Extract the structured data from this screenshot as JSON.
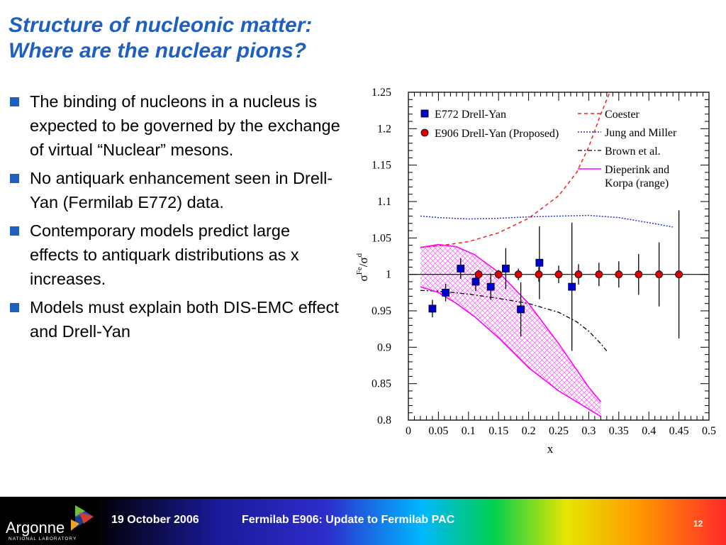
{
  "slide": {
    "title_line1": "Structure of nucleonic matter:",
    "title_line2": "Where are the nuclear pions?",
    "bullets": [
      "The binding of nucleons in a nucleus is expected to be governed by the exchange of virtual “Nuclear” mesons.",
      "No antiquark enhancement seen in Drell-Yan (Fermilab E772) data.",
      "Contemporary models predict large effects to antiquark distributions as x increases.",
      "Models must explain both DIS-EMC effect and Drell-Yan"
    ]
  },
  "footer": {
    "logo_word": "Argonne",
    "logo_sub": "NATIONAL LABORATORY",
    "date": "19 October 2006",
    "title": "Fermilab E906:  Update to Fermilab PAC",
    "page": "12"
  },
  "colors": {
    "title": "#1f5fbf",
    "bullet": "#1f5fbf",
    "e772": "#0000cc",
    "e906": "#dd0000",
    "coester": "#ee2222",
    "jung": "#2233cc",
    "dieperink": "#ff00ff"
  },
  "chart_data": {
    "type": "scatter",
    "xlabel": "x",
    "ylabel": "σFe/σd",
    "xlim": [
      0,
      0.5
    ],
    "ylim": [
      0.8,
      1.25
    ],
    "xticks": [
      "0",
      "0.05",
      "0.1",
      "0.15",
      "0.2",
      "0.25",
      "0.3",
      "0.35",
      "0.4",
      "0.45",
      "0.5"
    ],
    "yticks": [
      "0.8",
      "0.85",
      "0.9",
      "0.95",
      "1",
      "1.05",
      "1.1",
      "1.15",
      "1.2",
      "1.25"
    ],
    "reference_line": 1.0,
    "series": [
      {
        "name": "E772 Drell-Yan",
        "marker": "square",
        "points": [
          {
            "x": 0.04,
            "y": 0.953,
            "err": 0.012
          },
          {
            "x": 0.062,
            "y": 0.975,
            "err": 0.012
          },
          {
            "x": 0.087,
            "y": 1.008,
            "err": 0.014
          },
          {
            "x": 0.112,
            "y": 0.99,
            "err": 0.013
          },
          {
            "x": 0.137,
            "y": 0.983,
            "err": 0.018
          },
          {
            "x": 0.162,
            "y": 1.008,
            "err": 0.028
          },
          {
            "x": 0.187,
            "y": 0.952,
            "err": 0.037
          },
          {
            "x": 0.218,
            "y": 1.016,
            "err": 0.05
          },
          {
            "x": 0.272,
            "y": 0.983,
            "err": 0.088
          }
        ]
      },
      {
        "name": "E906 Drell-Yan (Proposed)",
        "marker": "circle",
        "points": [
          {
            "x": 0.117,
            "y": 1.0,
            "err": 0.006
          },
          {
            "x": 0.15,
            "y": 1.0,
            "err": 0.006
          },
          {
            "x": 0.183,
            "y": 1.0,
            "err": 0.008
          },
          {
            "x": 0.217,
            "y": 1.0,
            "err": 0.01
          },
          {
            "x": 0.25,
            "y": 1.0,
            "err": 0.012
          },
          {
            "x": 0.283,
            "y": 1.0,
            "err": 0.014
          },
          {
            "x": 0.317,
            "y": 1.0,
            "err": 0.016
          },
          {
            "x": 0.35,
            "y": 1.0,
            "err": 0.018
          },
          {
            "x": 0.383,
            "y": 1.0,
            "err": 0.028
          },
          {
            "x": 0.417,
            "y": 1.0,
            "err": 0.044
          },
          {
            "x": 0.45,
            "y": 1.0,
            "err": 0.088
          }
        ]
      }
    ],
    "curves": [
      {
        "name": "Coester",
        "style": "dashed",
        "points": [
          [
            0.02,
            1.037
          ],
          [
            0.05,
            1.039
          ],
          [
            0.1,
            1.045
          ],
          [
            0.15,
            1.057
          ],
          [
            0.2,
            1.077
          ],
          [
            0.25,
            1.108
          ],
          [
            0.28,
            1.14
          ],
          [
            0.3,
            1.175
          ],
          [
            0.32,
            1.22
          ],
          [
            0.335,
            1.25
          ]
        ]
      },
      {
        "name": "Jung and Miller",
        "style": "dotted",
        "points": [
          [
            0.02,
            1.08
          ],
          [
            0.05,
            1.078
          ],
          [
            0.1,
            1.076
          ],
          [
            0.15,
            1.077
          ],
          [
            0.2,
            1.079
          ],
          [
            0.25,
            1.08
          ],
          [
            0.3,
            1.081
          ],
          [
            0.35,
            1.078
          ],
          [
            0.4,
            1.071
          ],
          [
            0.44,
            1.065
          ]
        ]
      },
      {
        "name": "Brown et al.",
        "style": "dashdot",
        "points": [
          [
            0.02,
            0.978
          ],
          [
            0.05,
            0.977
          ],
          [
            0.1,
            0.973
          ],
          [
            0.15,
            0.967
          ],
          [
            0.2,
            0.96
          ],
          [
            0.25,
            0.948
          ],
          [
            0.28,
            0.935
          ],
          [
            0.3,
            0.922
          ],
          [
            0.32,
            0.905
          ],
          [
            0.33,
            0.895
          ]
        ]
      },
      {
        "name": "Dieperink and Korpa (range)",
        "style": "band",
        "upper": [
          [
            0.02,
            1.037
          ],
          [
            0.05,
            1.041
          ],
          [
            0.08,
            1.038
          ],
          [
            0.11,
            1.027
          ],
          [
            0.15,
            1.003
          ],
          [
            0.2,
            0.96
          ],
          [
            0.25,
            0.905
          ],
          [
            0.3,
            0.845
          ],
          [
            0.32,
            0.825
          ]
        ],
        "lower": [
          [
            0.02,
            0.983
          ],
          [
            0.05,
            0.975
          ],
          [
            0.08,
            0.96
          ],
          [
            0.11,
            0.942
          ],
          [
            0.15,
            0.913
          ],
          [
            0.2,
            0.872
          ],
          [
            0.25,
            0.84
          ],
          [
            0.3,
            0.815
          ],
          [
            0.32,
            0.805
          ]
        ]
      }
    ],
    "legend_position": "top"
  }
}
